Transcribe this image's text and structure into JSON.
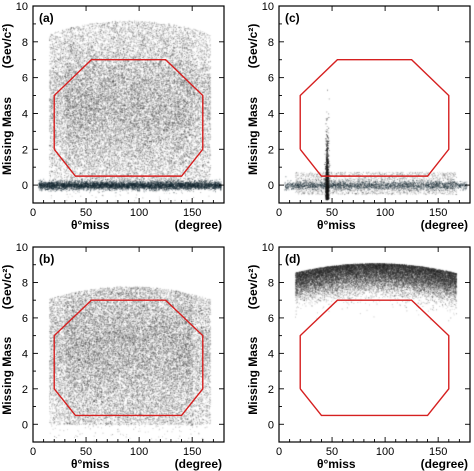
{
  "chart_data": [
    {
      "type": "scatter",
      "panel_label": "(a)",
      "xlabel": "θ°miss",
      "xunit": "(degree)",
      "ylabel": "Missing Mass",
      "yunit": "(Gev/c²)",
      "xlim": [
        0,
        180
      ],
      "ylim": [
        -1,
        10
      ],
      "xticks": [
        0,
        50,
        100,
        150
      ],
      "yticks": [
        0,
        2,
        4,
        6,
        8,
        10
      ],
      "density": {
        "description_level": "heavy",
        "band_y_range": [
          -0.2,
          9.2
        ],
        "peak_center": [
          90,
          4.5
        ],
        "horizontal_band_at_y": 0,
        "level": 1.0,
        "band_level": 0.9
      },
      "selection_region": {
        "color": "#d62020",
        "vertices": [
          [
            20,
            2
          ],
          [
            20,
            5
          ],
          [
            55,
            7
          ],
          [
            125,
            7
          ],
          [
            160,
            5
          ],
          [
            160,
            2
          ],
          [
            140,
            0.5
          ],
          [
            40,
            0.5
          ],
          [
            20,
            2
          ]
        ]
      }
    },
    {
      "type": "scatter",
      "panel_label": "(b)",
      "xlabel": "θ°miss",
      "xunit": "(degree)",
      "ylabel": "Missing Mass",
      "yunit": "(Gev/c²)",
      "xlim": [
        0,
        180
      ],
      "ylim": [
        -1,
        10
      ],
      "xticks": [
        0,
        50,
        100,
        150
      ],
      "yticks": [
        0,
        2,
        4,
        6,
        8,
        10
      ],
      "density": {
        "band_y_range": [
          0,
          7.8
        ],
        "peak_center": [
          90,
          4.5
        ],
        "horizontal_band_at_y": null,
        "level": 1.0,
        "band_level": 0
      },
      "selection_region": {
        "color": "#d62020",
        "vertices": [
          [
            20,
            2
          ],
          [
            20,
            5
          ],
          [
            55,
            7
          ],
          [
            125,
            7
          ],
          [
            160,
            5
          ],
          [
            160,
            2
          ],
          [
            140,
            0.5
          ],
          [
            40,
            0.5
          ],
          [
            20,
            2
          ]
        ]
      }
    },
    {
      "type": "scatter",
      "panel_label": "(c)",
      "xlabel": "θ°miss",
      "xunit": "(degree)",
      "ylabel": "Missing Mass",
      "yunit": "(Gev/c²)",
      "xlim": [
        0,
        180
      ],
      "ylim": [
        -1,
        10
      ],
      "xticks": [
        0,
        50,
        100,
        150
      ],
      "yticks": [
        0,
        2,
        4,
        6,
        8,
        10
      ],
      "density": {
        "band_y_range": [
          -0.5,
          2.0
        ],
        "peak_center": [
          45,
          0
        ],
        "horizontal_band_at_y": 0,
        "vertical_spike_at_x": 45,
        "level": 0.08,
        "band_level": 0.35
      },
      "selection_region": {
        "color": "#d62020",
        "vertices": [
          [
            20,
            2
          ],
          [
            20,
            5
          ],
          [
            55,
            7
          ],
          [
            125,
            7
          ],
          [
            160,
            5
          ],
          [
            160,
            2
          ],
          [
            140,
            0.5
          ],
          [
            40,
            0.5
          ],
          [
            20,
            2
          ]
        ]
      }
    },
    {
      "type": "scatter",
      "panel_label": "(d)",
      "xlabel": "θ°miss",
      "xunit": "(degree)",
      "ylabel": "Missing Mass",
      "yunit": "(Gev/c²)",
      "xlim": [
        0,
        180
      ],
      "ylim": [
        -1,
        10
      ],
      "xticks": [
        0,
        50,
        100,
        150
      ],
      "yticks": [
        0,
        2,
        4,
        6,
        8,
        10
      ],
      "density": {
        "band_y_range": [
          7.0,
          9.1
        ],
        "peak_center": [
          90,
          8.4
        ],
        "horizontal_band_at_y": null,
        "level": 0.75,
        "band_level": 0
      },
      "selection_region": {
        "color": "#d62020",
        "vertices": [
          [
            20,
            2
          ],
          [
            20,
            5
          ],
          [
            55,
            7
          ],
          [
            125,
            7
          ],
          [
            160,
            5
          ],
          [
            160,
            2
          ],
          [
            140,
            0.5
          ],
          [
            40,
            0.5
          ],
          [
            20,
            2
          ]
        ]
      }
    }
  ]
}
